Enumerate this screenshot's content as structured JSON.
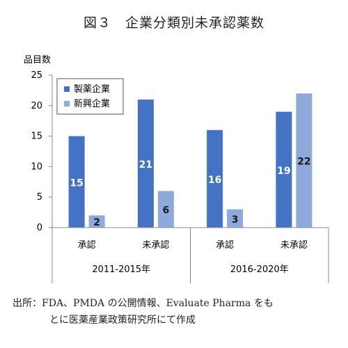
{
  "title": "図３　企業分類別未承認薬数",
  "source_line1": "出所：FDA、PMDA の公開情報、Evaluate Pharma をも",
  "source_line2": "とに医薬産業政策研究所にて作成",
  "chart_data": {
    "type": "bar",
    "ylabel": "品目数",
    "ylim": [
      0,
      25
    ],
    "yticks": [
      0,
      5,
      10,
      15,
      20,
      25
    ],
    "grid": false,
    "legend_position": "top-left",
    "categories": [
      "承認",
      "未承認",
      "承認",
      "未承認"
    ],
    "groups": [
      {
        "label": "2011-2015年",
        "categories": [
          "承認",
          "未承認"
        ]
      },
      {
        "label": "2016-2020年",
        "categories": [
          "承認",
          "未承認"
        ]
      }
    ],
    "series": [
      {
        "name": "製薬企業",
        "color": "#4472c4",
        "values": [
          15,
          21,
          16,
          19
        ]
      },
      {
        "name": "新興企業",
        "color": "#8eaadb",
        "values": [
          2,
          6,
          3,
          22
        ]
      }
    ]
  }
}
